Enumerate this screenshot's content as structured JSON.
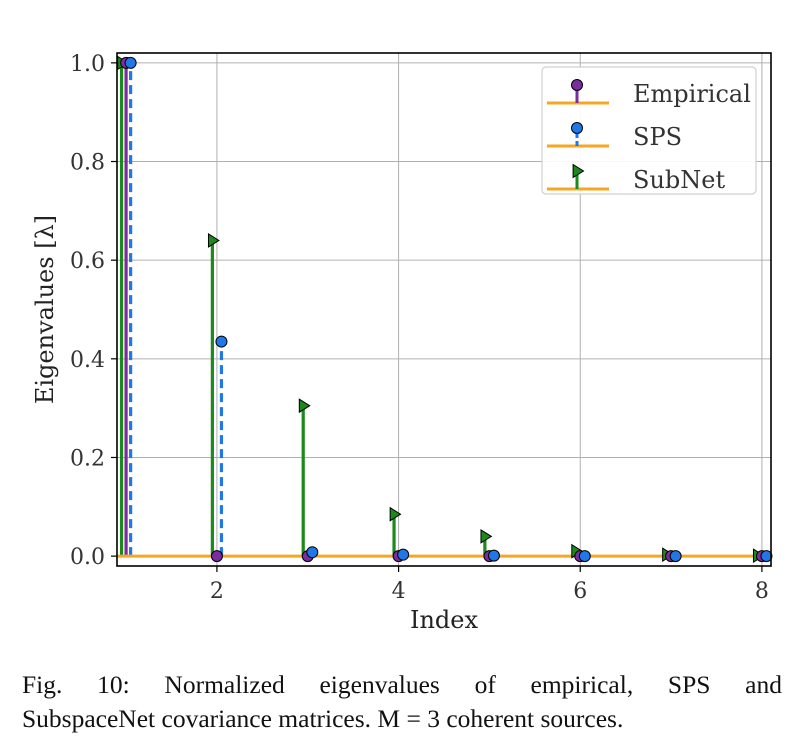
{
  "chart_data": {
    "type": "stem",
    "xlabel": "Index",
    "ylabel": "Eigenvalues [λ]",
    "xlim": [
      0.9,
      8.1
    ],
    "ylim": [
      -0.02,
      1.02
    ],
    "xticks": [
      2,
      4,
      6,
      8
    ],
    "yticks": [
      0.0,
      0.2,
      0.4,
      0.6,
      0.8,
      1.0
    ],
    "ytick_labels": [
      "0.0",
      "0.2",
      "0.4",
      "0.6",
      "0.8",
      "1.0"
    ],
    "xtick_labels": [
      "2",
      "4",
      "6",
      "8"
    ],
    "grid": true,
    "legend_position": "top-right",
    "baseline_color": "#f5a623",
    "series": [
      {
        "name": "Empirical",
        "marker": "circle",
        "color": "#7b2c9e",
        "linestyle": "solid",
        "x": [
          1,
          2,
          3,
          4,
          5,
          6,
          7,
          8
        ],
        "values": [
          1.0,
          0.0,
          0.0,
          0.0,
          0.0,
          0.0,
          0.0,
          0.0
        ]
      },
      {
        "name": "SPS",
        "marker": "circle",
        "color": "#1f77e8",
        "linestyle": "dashed",
        "x": [
          1.05,
          2.05,
          3.05,
          4.05,
          5.05,
          6.05,
          7.05,
          8.05
        ],
        "values": [
          1.0,
          0.435,
          0.008,
          0.003,
          0.001,
          0.0,
          0.0,
          0.0
        ]
      },
      {
        "name": "SubNet",
        "marker": "triangle-right",
        "color": "#1b8a1b",
        "linestyle": "solid",
        "x": [
          0.95,
          1.95,
          2.95,
          3.95,
          4.95,
          5.95,
          6.95,
          7.95
        ],
        "values": [
          1.0,
          0.64,
          0.305,
          0.085,
          0.04,
          0.01,
          0.003,
          0.001
        ]
      }
    ]
  },
  "caption": {
    "line1": "Fig. 10: Normalized eigenvalues of empirical, SPS and",
    "line2": "SubspaceNet covariance matrices. M = 3 coherent sources."
  }
}
